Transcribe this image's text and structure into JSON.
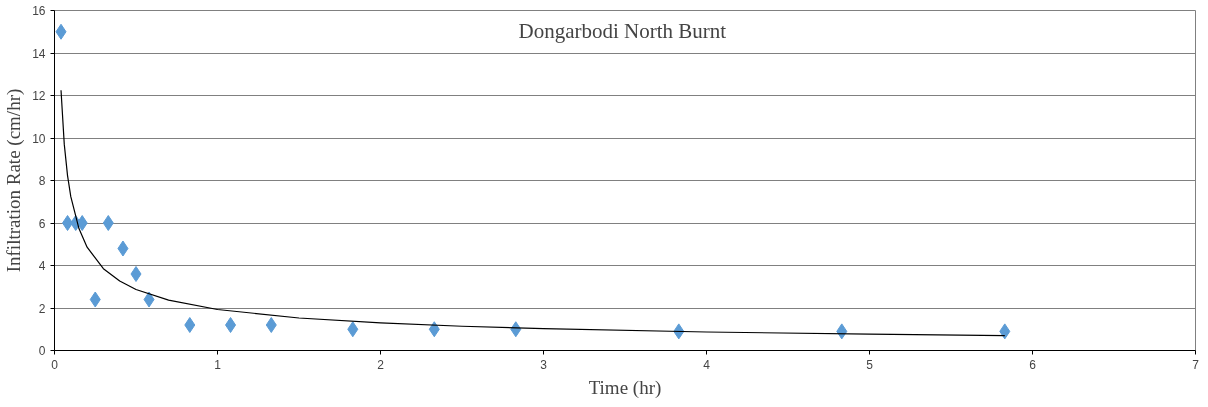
{
  "chart_data": {
    "type": "scatter",
    "title": "Dongarbodi North  Burnt",
    "xlabel": "Time (hr)",
    "ylabel": "Infiltration Rate (cm/hr)",
    "xlim": [
      0,
      7
    ],
    "xticks": [
      0,
      1,
      2,
      3,
      4,
      5,
      6,
      7
    ],
    "ylim": [
      0,
      16
    ],
    "yticks": [
      0,
      2,
      4,
      6,
      8,
      10,
      12,
      14,
      16
    ],
    "grid": "y",
    "marker": "diamond",
    "series": [
      {
        "color": "#5b9bd5",
        "x": [
          0.04,
          0.08,
          0.13,
          0.17,
          0.25,
          0.33,
          0.42,
          0.5,
          0.58,
          0.83,
          1.08,
          1.33,
          1.83,
          2.33,
          2.83,
          3.83,
          4.83,
          5.83
        ],
        "values": [
          15,
          6,
          6,
          6,
          2.4,
          6,
          4.8,
          3.6,
          2.4,
          1.2,
          1.2,
          1.2,
          1.0,
          1.0,
          1.0,
          0.9,
          0.9,
          0.9
        ]
      },
      {
        "type": "line",
        "color": "#000000",
        "marker": "none",
        "x": [
          0.04,
          0.06,
          0.08,
          0.1,
          0.15,
          0.2,
          0.3,
          0.4,
          0.5,
          0.7,
          1,
          1.5,
          2,
          2.5,
          3,
          4,
          5,
          5.83
        ],
        "values": [
          12.25,
          9.7,
          8.23,
          7.24,
          5.74,
          4.86,
          3.85,
          3.27,
          2.87,
          2.37,
          1.93,
          1.53,
          1.3,
          1.14,
          1.03,
          0.87,
          0.77,
          0.7
        ]
      }
    ]
  }
}
